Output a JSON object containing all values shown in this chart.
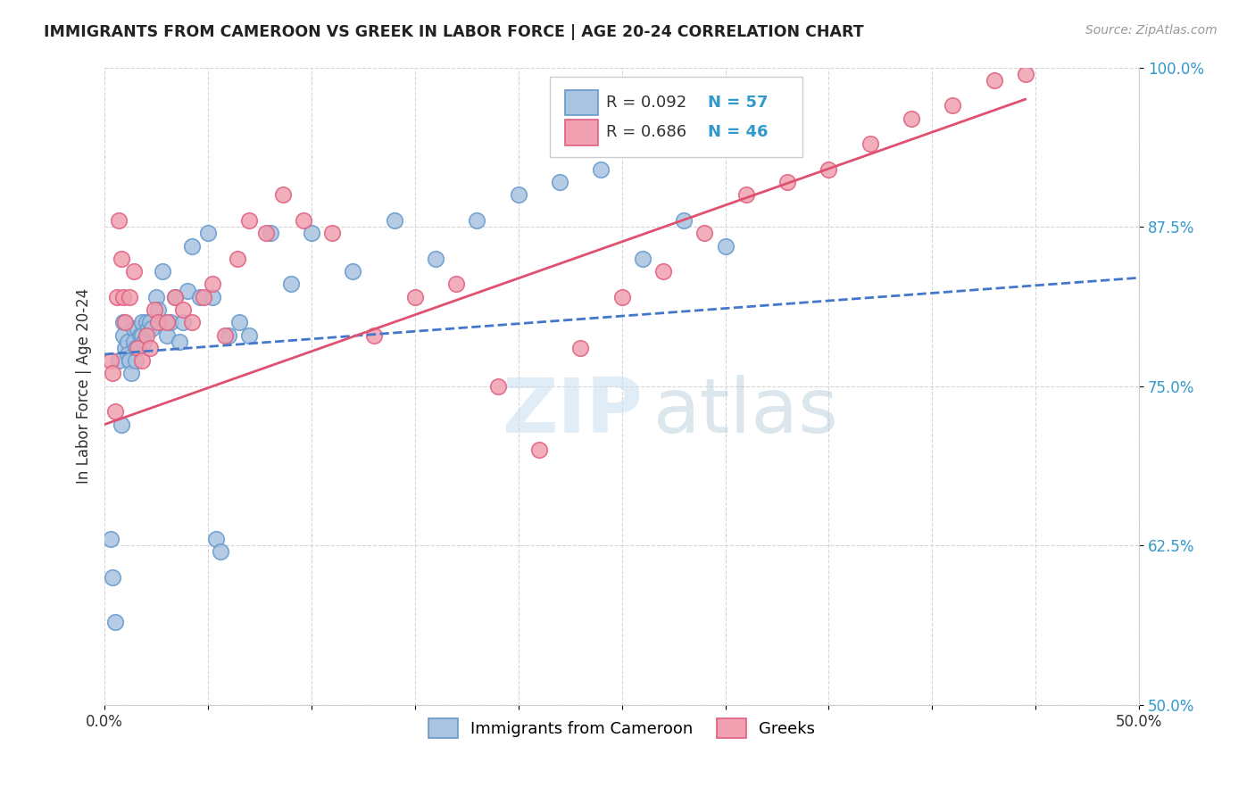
{
  "title": "IMMIGRANTS FROM CAMEROON VS GREEK IN LABOR FORCE | AGE 20-24 CORRELATION CHART",
  "source": "Source: ZipAtlas.com",
  "ylabel": "In Labor Force | Age 20-24",
  "xlim": [
    0.0,
    0.5
  ],
  "ylim": [
    0.5,
    1.0
  ],
  "xticks": [
    0.0,
    0.05,
    0.1,
    0.15,
    0.2,
    0.25,
    0.3,
    0.35,
    0.4,
    0.45,
    0.5
  ],
  "xticklabels": [
    "0.0%",
    "",
    "",
    "",
    "",
    "",
    "",
    "",
    "",
    "",
    "50.0%"
  ],
  "yticks": [
    0.5,
    0.625,
    0.75,
    0.875,
    1.0
  ],
  "yticklabels": [
    "50.0%",
    "62.5%",
    "75.0%",
    "87.5%",
    "100.0%"
  ],
  "legend_r_blue": "R = 0.092",
  "legend_n_blue": "N = 57",
  "legend_r_pink": "R = 0.686",
  "legend_n_pink": "N = 46",
  "blue_color": "#a8c4e0",
  "pink_color": "#f0a0b0",
  "blue_edge_color": "#6699cc",
  "pink_edge_color": "#e06080",
  "blue_line_color": "#4477cc",
  "pink_line_color": "#e05070",
  "blue_scatter_x": [
    0.003,
    0.004,
    0.005,
    0.007,
    0.008,
    0.009,
    0.009,
    0.01,
    0.011,
    0.011,
    0.012,
    0.012,
    0.013,
    0.014,
    0.014,
    0.015,
    0.015,
    0.016,
    0.017,
    0.018,
    0.018,
    0.019,
    0.02,
    0.021,
    0.022,
    0.023,
    0.025,
    0.026,
    0.028,
    0.03,
    0.032,
    0.034,
    0.036,
    0.038,
    0.04,
    0.042,
    0.046,
    0.05,
    0.052,
    0.054,
    0.056,
    0.06,
    0.065,
    0.07,
    0.08,
    0.09,
    0.1,
    0.12,
    0.14,
    0.16,
    0.18,
    0.2,
    0.22,
    0.24,
    0.26,
    0.28,
    0.3
  ],
  "blue_scatter_y": [
    0.63,
    0.6,
    0.565,
    0.77,
    0.72,
    0.8,
    0.79,
    0.78,
    0.785,
    0.775,
    0.77,
    0.77,
    0.76,
    0.795,
    0.785,
    0.78,
    0.77,
    0.795,
    0.79,
    0.8,
    0.79,
    0.785,
    0.8,
    0.795,
    0.8,
    0.795,
    0.82,
    0.81,
    0.84,
    0.79,
    0.8,
    0.82,
    0.785,
    0.8,
    0.825,
    0.86,
    0.82,
    0.87,
    0.82,
    0.63,
    0.62,
    0.79,
    0.8,
    0.79,
    0.87,
    0.83,
    0.87,
    0.84,
    0.88,
    0.85,
    0.88,
    0.9,
    0.91,
    0.92,
    0.85,
    0.88,
    0.86
  ],
  "pink_scatter_x": [
    0.003,
    0.004,
    0.005,
    0.006,
    0.007,
    0.008,
    0.009,
    0.01,
    0.012,
    0.014,
    0.016,
    0.018,
    0.02,
    0.022,
    0.024,
    0.026,
    0.03,
    0.034,
    0.038,
    0.042,
    0.048,
    0.052,
    0.058,
    0.064,
    0.07,
    0.078,
    0.086,
    0.096,
    0.11,
    0.13,
    0.15,
    0.17,
    0.19,
    0.21,
    0.23,
    0.25,
    0.27,
    0.29,
    0.31,
    0.33,
    0.35,
    0.37,
    0.39,
    0.41,
    0.43,
    0.445
  ],
  "pink_scatter_y": [
    0.77,
    0.76,
    0.73,
    0.82,
    0.88,
    0.85,
    0.82,
    0.8,
    0.82,
    0.84,
    0.78,
    0.77,
    0.79,
    0.78,
    0.81,
    0.8,
    0.8,
    0.82,
    0.81,
    0.8,
    0.82,
    0.83,
    0.79,
    0.85,
    0.88,
    0.87,
    0.9,
    0.88,
    0.87,
    0.79,
    0.82,
    0.83,
    0.75,
    0.7,
    0.78,
    0.82,
    0.84,
    0.87,
    0.9,
    0.91,
    0.92,
    0.94,
    0.96,
    0.97,
    0.99,
    0.995
  ],
  "blue_line_x": [
    0.0,
    0.5
  ],
  "blue_line_y": [
    0.775,
    0.835
  ],
  "pink_line_x": [
    0.0,
    0.445
  ],
  "pink_line_y": [
    0.72,
    0.975
  ]
}
